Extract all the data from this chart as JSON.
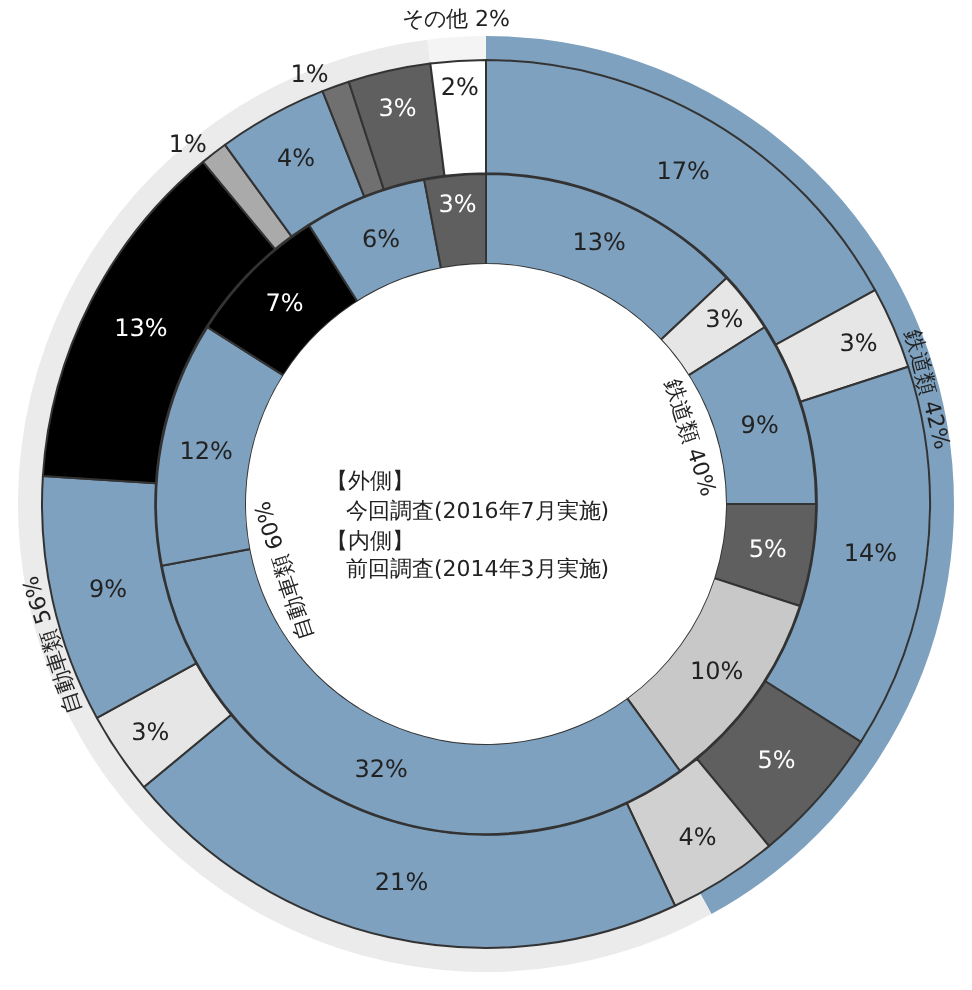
{
  "chart_data": {
    "type": "donut",
    "legend": false,
    "annotations": [
      "【外側】",
      "今回調査(2016年7月実施)",
      "【内側】",
      "前回調査(2014年3月実施)"
    ],
    "series": [
      {
        "values": [
          40,
          60
        ],
        "colors": [
          "#ffffff",
          "#ffffff"
        ],
        "value_labels": [
          "鉄道類 40%",
          "自動車類 60%"
        ]
      },
      {
        "values": [
          13,
          3,
          9,
          5,
          10,
          32,
          12,
          7,
          6,
          3
        ],
        "colors": [
          "#7ea1bf",
          "#e6e6e6",
          "#7ea1bf",
          "#5f5f5f",
          "#c8c8c8",
          "#7ea1bf",
          "#7ea1bf",
          "#000000",
          "#7ea1bf",
          "#5f5f5f"
        ],
        "value_labels": [
          "13%",
          "3%",
          "9%",
          "5%",
          "10%",
          "32%",
          "12%",
          "7%",
          "6%",
          "3%"
        ]
      },
      {
        "values": [
          17,
          3,
          14,
          5,
          4,
          21,
          3,
          9,
          13,
          1,
          4,
          1,
          3,
          2
        ],
        "colors": [
          "#7ea1bf",
          "#e6e6e6",
          "#7ea1bf",
          "#5f5f5f",
          "#d0d0d0",
          "#7ea1bf",
          "#e6e6e6",
          "#7ea1bf",
          "#000000",
          "#aaaaaa",
          "#7ea1bf",
          "#707070",
          "#5f5f5f",
          "#ffffff"
        ],
        "value_labels": [
          "17%",
          "3%",
          "14%",
          "5%",
          "4%",
          "21%",
          "3%",
          "9%",
          "13%",
          "1%",
          "4%",
          "1%",
          "3%",
          "2%"
        ]
      },
      {
        "values": [
          42,
          56,
          2
        ],
        "colors": [
          "#7ea1bf",
          "#ebebeb",
          "#f4f4f4"
        ],
        "value_labels": [
          "鉄道類 42%",
          "自動車類 56%",
          "その他 2%"
        ]
      }
    ]
  }
}
